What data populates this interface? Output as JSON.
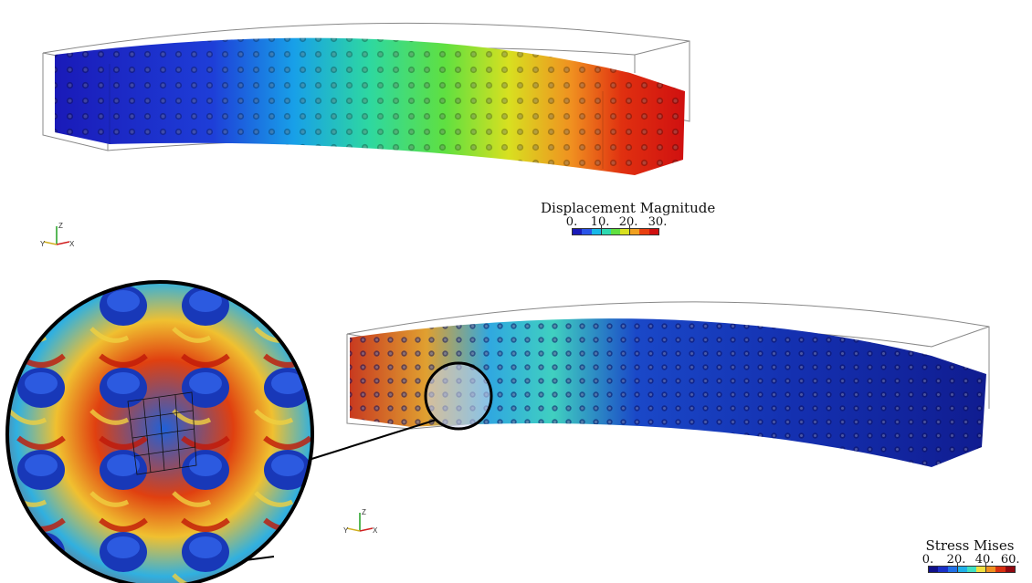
{
  "top_view": {
    "legend": {
      "title": "Displacement Magnitude",
      "ticks": [
        "0.",
        "10.",
        "20.",
        "30."
      ],
      "colors": [
        "#1a1ab8",
        "#2a55e8",
        "#18b8e8",
        "#2ed8b0",
        "#60e040",
        "#d8e020",
        "#f0a020",
        "#e84010",
        "#d01010"
      ]
    },
    "axes": {
      "z": "Z",
      "y": "Y",
      "x": "X"
    }
  },
  "bottom_view": {
    "legend": {
      "title": "Stress Mises",
      "ticks": [
        "0.",
        "20.",
        "40.",
        "60."
      ],
      "colors": [
        "#10108a",
        "#1a30c8",
        "#2070e8",
        "#20b0e8",
        "#40e0c0",
        "#f0e040",
        "#f09020",
        "#d83010",
        "#900810"
      ]
    },
    "axes": {
      "z": "Z",
      "y": "Y",
      "x": "X"
    }
  },
  "colors": {
    "beam_blue": "#1428b0",
    "stress_red": "#d02010",
    "bounding_box": "#888888"
  }
}
